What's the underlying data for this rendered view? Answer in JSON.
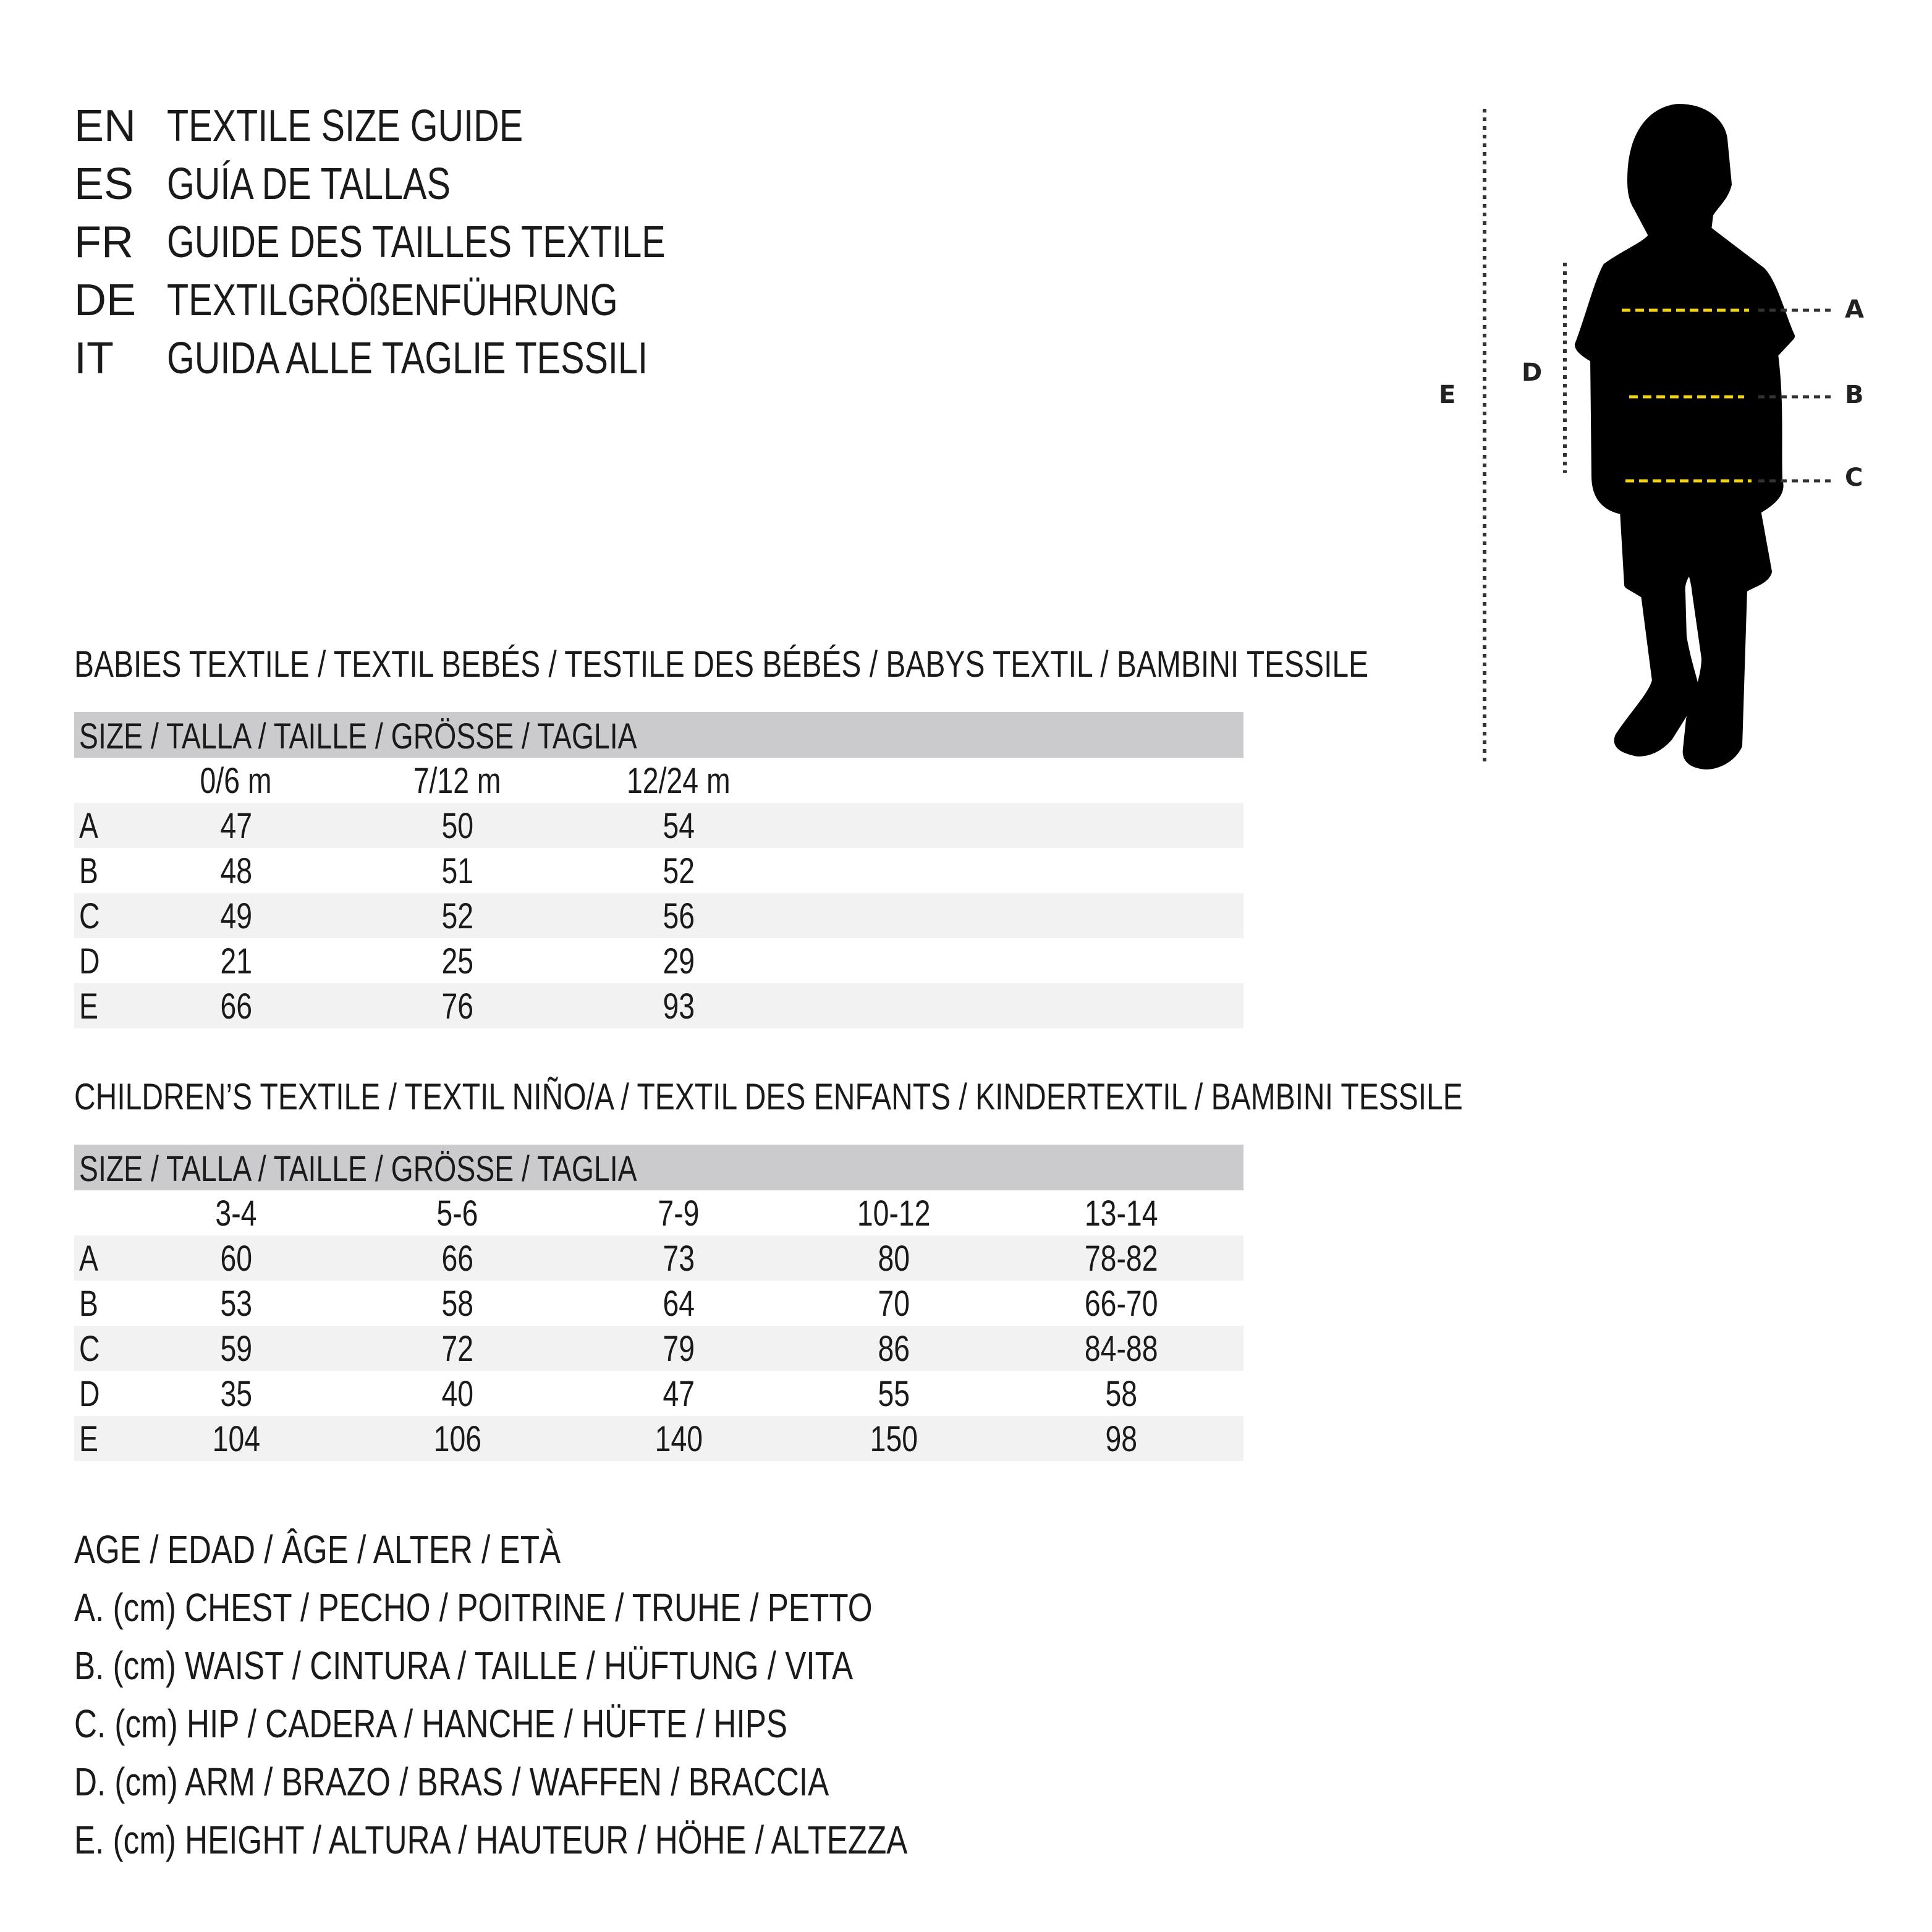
{
  "titles": [
    {
      "code": "EN",
      "text": "TEXTILE SIZE GUIDE"
    },
    {
      "code": "ES",
      "text": "GUÍA DE TALLAS"
    },
    {
      "code": "FR",
      "text": "GUIDE DES TAILLES TEXTILE"
    },
    {
      "code": "DE",
      "text": "TEXTILGRÖßENFÜHRUNG"
    },
    {
      "code": "IT",
      "text": "GUIDA ALLE TAGLIE TESSILI"
    }
  ],
  "diagram": {
    "labels": {
      "a": "A",
      "b": "B",
      "c": "C",
      "d": "D",
      "e": "E"
    },
    "colors": {
      "silhouette": "#000000",
      "measure_line": "#f2d21b",
      "guide_line": "#333333"
    }
  },
  "babies": {
    "heading": "BABIES TEXTILE / TEXTIL BEBÉS / TESTILE DES BÉBÉS / BABYS TEXTIL / BAMBINI TESSILE",
    "size_header": "SIZE / TALLA / TAILLE / GRÖSSE / TAGLIA",
    "columns": [
      "0/6 m",
      "7/12 m",
      "12/24 m"
    ],
    "rows": [
      {
        "label": "A",
        "values": [
          "47",
          "50",
          "54"
        ]
      },
      {
        "label": "B",
        "values": [
          "48",
          "51",
          "52"
        ]
      },
      {
        "label": "C",
        "values": [
          "49",
          "52",
          "56"
        ]
      },
      {
        "label": "D",
        "values": [
          "21",
          "25",
          "29"
        ]
      },
      {
        "label": "E",
        "values": [
          "66",
          "76",
          "93"
        ]
      }
    ]
  },
  "children": {
    "heading": "CHILDREN’S TEXTILE / TEXTIL NIÑO/A / TEXTIL DES ENFANTS / KINDERTEXTIL / BAMBINI TESSILE",
    "size_header": "SIZE / TALLA / TAILLE / GRÖSSE / TAGLIA",
    "columns": [
      "3-4",
      "5-6",
      "7-9",
      "10-12",
      "13-14"
    ],
    "rows": [
      {
        "label": "A",
        "values": [
          "60",
          "66",
          "73",
          "80",
          "78-82"
        ]
      },
      {
        "label": "B",
        "values": [
          "53",
          "58",
          "64",
          "70",
          "66-70"
        ]
      },
      {
        "label": "C",
        "values": [
          "59",
          "72",
          "79",
          "86",
          "84-88"
        ]
      },
      {
        "label": "D",
        "values": [
          "35",
          "40",
          "47",
          "55",
          "58"
        ]
      },
      {
        "label": "E",
        "values": [
          "104",
          "106",
          "140",
          "150",
          "98"
        ]
      }
    ]
  },
  "legend": [
    "AGE / EDAD / ÂGE / ALTER / ETÀ",
    "A. (cm) CHEST / PECHO / POITRINE / TRUHE / PETTO",
    "B. (cm) WAIST / CINTURA / TAILLE / HÜFTUNG / VITA",
    "C. (cm) HIP / CADERA / HANCHE / HÜFTE / HIPS",
    "D. (cm) ARM / BRAZO / BRAS / WAFFEN / BRACCIA",
    "E. (cm) HEIGHT / ALTURA / HAUTEUR / HÖHE / ALTEZZA"
  ]
}
